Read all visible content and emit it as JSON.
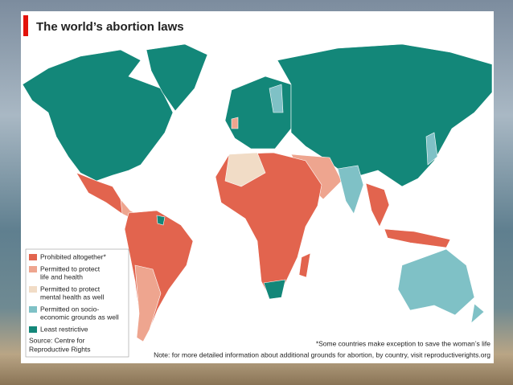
{
  "title": "The world’s abortion laws",
  "legend": [
    {
      "lines": [
        "Prohibited altogether*"
      ],
      "color": "#e2644e"
    },
    {
      "lines": [
        "Permitted to protect",
        "life and health"
      ],
      "color": "#eea58f"
    },
    {
      "lines": [
        "Permitted to protect",
        "mental health as well"
      ],
      "color": "#f1dcc6"
    },
    {
      "lines": [
        "Permitted on socio-",
        "economic grounds as well"
      ],
      "color": "#7fc1c6"
    },
    {
      "lines": [
        "Least restrictive"
      ],
      "color": "#138779"
    }
  ],
  "source": [
    "Source: Centre for",
    "Reproductive Rights"
  ],
  "footnote": "*Some countries make exception to save the woman’s life",
  "note": "Note: for more detailed information about  additional grounds for abortion, by country, visit reproductiverights.org"
}
